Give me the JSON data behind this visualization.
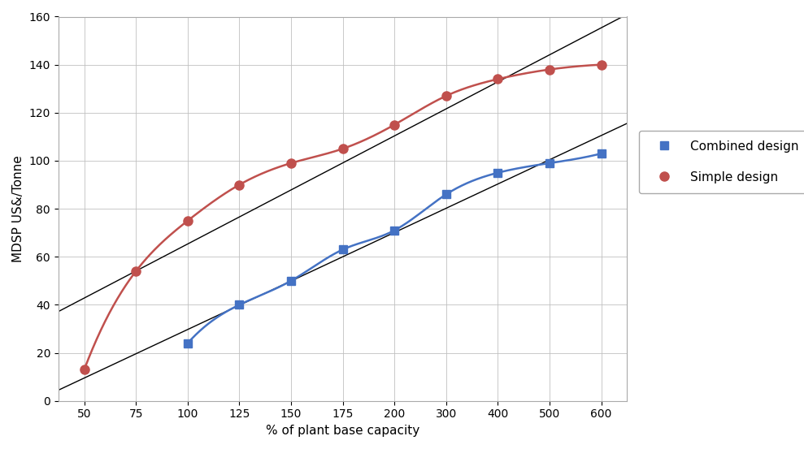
{
  "combined_x": [
    100,
    125,
    150,
    175,
    200,
    300,
    400,
    500,
    600
  ],
  "combined_y": [
    24,
    40,
    50,
    63,
    71,
    86,
    95,
    99,
    103
  ],
  "simple_x": [
    50,
    75,
    100,
    125,
    150,
    175,
    200,
    300,
    400,
    500,
    600
  ],
  "simple_y": [
    13,
    54,
    75,
    90,
    99,
    105,
    115,
    127,
    134,
    138,
    140
  ],
  "combined_color": "#4472C4",
  "simple_color": "#C0504D",
  "trendline_color": "#000000",
  "background_color": "#ffffff",
  "xlabel": "% of plant base capacity",
  "ylabel": "MDSP US&/Tonne",
  "ylim": [
    0,
    160
  ],
  "xticks": [
    50,
    75,
    100,
    125,
    150,
    175,
    200,
    300,
    400,
    500,
    600
  ],
  "yticks": [
    0,
    20,
    40,
    60,
    80,
    100,
    120,
    140,
    160
  ],
  "combined_label": "Combined design",
  "simple_label": "Simple design",
  "axis_fontsize": 11,
  "tick_fontsize": 10,
  "legend_fontsize": 11
}
